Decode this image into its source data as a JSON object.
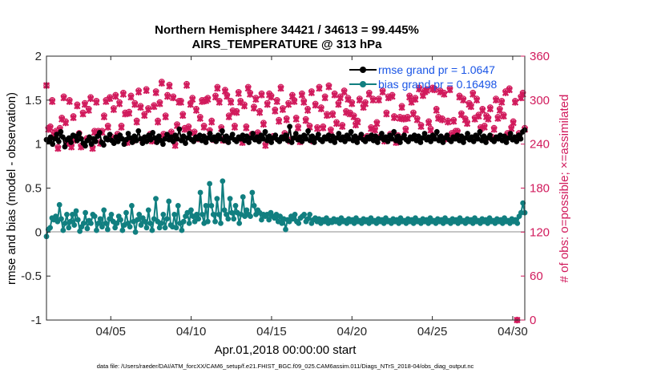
{
  "chart_data": {
    "type": "line",
    "title": "Northern Hemisphere 34421 / 34613 = 99.445%",
    "subtitle": "AIRS_TEMPERATURE @ 313 hPa",
    "xlabel": "Apr.01,2018 00:00:00 start",
    "ylabel": "rmse and bias (model - observation)",
    "y2label": "# of obs: o=possible; ×=assimilated",
    "footer": "data file: /Users/raeder/DAI/ATM_forcXX/CAM6_setup/f.e21.FHIST_BGC.f09_025.CAM6assim.011/Diags_NTrS_2018-04/obs_diag_output.nc",
    "xlim": [
      1,
      30.75
    ],
    "ylim": [
      -1,
      2
    ],
    "y2lim": [
      0,
      360
    ],
    "x_ticks": [
      5,
      10,
      15,
      20,
      25,
      30
    ],
    "x_tick_labels": [
      "04/05",
      "04/10",
      "04/15",
      "04/20",
      "04/25",
      "04/30"
    ],
    "y_ticks": [
      -1,
      -0.5,
      0,
      0.5,
      1,
      1.5,
      2
    ],
    "y_tick_labels": [
      "-1",
      "-0.5",
      "0",
      "0.5",
      "1",
      "1.5",
      "2"
    ],
    "y2_ticks": [
      0,
      60,
      120,
      180,
      240,
      300,
      360
    ],
    "y2_tick_labels": [
      "0",
      "60",
      "120",
      "180",
      "240",
      "300",
      "360"
    ],
    "legend_position": "top-right",
    "colors": {
      "rmse": "#000000",
      "bias": "#117f80",
      "obs": "#d11a5c",
      "legend_text": "#1a55e6"
    },
    "series": [
      {
        "name": "rmse",
        "legend": "rmse grand pr = 1.0647",
        "axis": "left",
        "values": [
          1.05,
          1.03,
          1.08,
          1.0,
          1.06,
          1.11,
          1.03,
          1.14,
          1.08,
          0.97,
          1.05,
          1.07,
          1.02,
          1.1,
          1.09,
          1.04,
          1.12,
          1.06,
          1.01,
          0.98,
          1.04,
          1.08,
          1.0,
          1.06,
          1.03,
          1.09,
          1.13,
          1.02,
          0.99,
          1.07,
          1.05,
          1.11,
          1.04,
          1.01,
          1.08,
          1.03,
          1.1,
          1.06,
          1.0,
          1.05,
          1.12,
          1.07,
          1.02,
          1.09,
          1.04,
          1.15,
          1.06,
          1.01,
          1.08,
          1.03,
          1.1,
          1.05,
          1.13,
          1.07,
          1.02,
          1.09,
          1.04,
          1.0,
          1.06,
          1.11,
          1.05,
          1.08,
          1.03,
          1.1,
          1.06,
          1.17,
          1.04,
          1.09,
          1.01,
          1.07,
          1.12,
          1.05,
          1.03,
          1.08,
          1.06,
          1.1,
          1.04,
          1.09,
          1.02,
          1.07,
          1.12,
          1.05,
          1.08,
          1.03,
          1.1,
          1.06,
          1.15,
          1.04,
          1.09,
          1.02,
          1.07,
          1.11,
          1.05,
          1.03,
          1.08,
          1.06,
          1.1,
          1.04,
          1.09,
          1.02,
          1.07,
          1.12,
          1.05,
          1.08,
          1.03,
          1.1,
          1.06,
          1.14,
          1.04,
          1.09,
          1.02,
          1.07,
          1.1,
          1.05,
          1.03,
          1.08,
          1.06,
          1.1,
          1.04,
          1.2,
          1.02,
          1.07,
          1.12,
          1.05,
          1.08,
          1.03,
          1.1,
          1.06,
          1.15,
          1.04,
          1.09,
          1.02,
          1.07,
          1.11,
          1.05,
          1.03,
          1.08,
          1.06,
          1.1,
          1.04,
          1.09,
          1.02,
          1.07,
          1.12,
          1.05,
          1.08,
          1.03,
          1.1,
          1.06,
          1.14,
          1.04,
          1.09,
          1.02,
          1.07,
          1.11,
          1.05,
          1.03,
          1.08,
          1.06,
          1.1,
          1.04,
          1.09,
          1.02,
          1.07,
          1.12,
          1.05,
          1.08,
          1.03,
          1.1,
          1.06,
          1.14,
          1.04,
          1.09,
          1.02,
          1.07,
          1.1,
          1.05,
          1.03,
          1.08,
          1.06,
          1.1,
          1.04,
          1.09,
          1.02,
          1.07,
          1.12,
          1.05,
          1.08,
          1.03,
          1.1,
          1.06,
          1.14,
          1.04,
          1.09,
          1.02,
          1.07,
          1.1,
          1.05,
          1.03,
          1.08,
          1.06,
          1.1,
          1.04,
          1.09,
          1.02,
          1.07,
          1.12,
          1.05,
          1.08,
          1.03,
          1.1,
          1.06,
          1.14,
          1.04,
          1.09,
          1.02,
          1.07,
          1.1,
          1.05,
          1.03,
          1.08,
          1.06,
          1.1,
          1.04,
          1.09,
          1.02,
          1.07,
          1.12,
          1.05,
          1.08,
          1.03,
          1.1,
          1.06,
          1.14,
          1.16
        ]
      },
      {
        "name": "bias",
        "legend": "bias grand pr = 0.16498",
        "axis": "left",
        "values": [
          -0.05,
          0.03,
          0.05,
          0.16,
          0.14,
          0.18,
          0.12,
          0.31,
          0.15,
          0.02,
          0.1,
          0.2,
          0.05,
          0.12,
          0.2,
          0.08,
          0.24,
          0.14,
          0.01,
          0.06,
          0.1,
          0.22,
          0.04,
          0.13,
          0.1,
          0.2,
          0.18,
          0.02,
          0.1,
          0.15,
          0.06,
          0.25,
          0.1,
          0.03,
          0.15,
          0.2,
          0.12,
          0.05,
          0.1,
          0.18,
          0.14,
          0.02,
          0.08,
          0.22,
          0.1,
          0.06,
          0.3,
          0.12,
          0.0,
          0.14,
          0.2,
          0.08,
          0.16,
          0.12,
          0.05,
          0.25,
          0.1,
          0.02,
          0.15,
          0.38,
          0.12,
          0.05,
          0.1,
          0.2,
          0.05,
          0.15,
          0.35,
          0.08,
          0.06,
          0.2,
          0.05,
          0.3,
          0.1,
          0.02,
          0.12,
          0.18,
          0.22,
          0.1,
          0.25,
          0.18,
          0.12,
          0.2,
          0.15,
          0.45,
          0.2,
          0.1,
          0.3,
          0.12,
          0.55,
          0.3,
          0.2,
          0.12,
          0.38,
          0.2,
          0.1,
          0.58,
          0.25,
          0.2,
          0.15,
          0.38,
          0.22,
          0.15,
          0.3,
          0.22,
          0.1,
          0.2,
          0.4,
          0.18,
          0.25,
          0.2,
          0.18,
          0.45,
          0.3,
          0.2,
          0.25,
          0.22,
          0.14,
          0.2,
          0.18,
          0.2,
          0.14,
          0.22,
          0.18,
          0.16,
          0.2,
          0.12,
          0.18,
          0.1,
          0.15,
          0.03,
          0.14,
          0.12,
          0.18,
          0.15,
          0.2,
          0.12,
          0.1,
          0.16,
          0.18,
          0.2,
          0.12,
          0.15,
          0.2,
          0.1,
          0.14,
          0.16,
          0.12,
          0.15,
          0.1,
          0.14,
          0.12,
          0.16,
          0.1,
          0.13,
          0.11,
          0.15,
          0.12,
          0.14,
          0.1,
          0.16,
          0.12,
          0.13,
          0.1,
          0.15,
          0.12,
          0.14,
          0.1,
          0.16,
          0.12,
          0.13,
          0.1,
          0.15,
          0.12,
          0.14,
          0.1,
          0.16,
          0.12,
          0.13,
          0.1,
          0.15,
          0.12,
          0.14,
          0.1,
          0.16,
          0.12,
          0.13,
          0.1,
          0.15,
          0.12,
          0.14,
          0.1,
          0.16,
          0.12,
          0.13,
          0.1,
          0.15,
          0.12,
          0.14,
          0.1,
          0.16,
          0.12,
          0.13,
          0.1,
          0.15,
          0.12,
          0.14,
          0.1,
          0.16,
          0.12,
          0.13,
          0.1,
          0.15,
          0.12,
          0.14,
          0.1,
          0.16,
          0.12,
          0.13,
          0.1,
          0.15,
          0.12,
          0.14,
          0.1,
          0.16,
          0.12,
          0.13,
          0.1,
          0.15,
          0.12,
          0.14,
          0.1,
          0.16,
          0.12,
          0.13,
          0.1,
          0.15,
          0.12,
          0.14,
          0.1,
          0.16,
          0.12,
          0.13,
          0.1,
          0.15,
          0.12,
          0.14,
          0.1,
          0.16,
          0.12,
          0.13,
          0.1,
          0.15,
          0.12,
          0.14,
          0.1,
          0.18,
          0.22,
          0.33,
          0.22
        ]
      },
      {
        "name": "obs_possible",
        "axis": "right",
        "marker": "o",
        "values": [
          320,
          262,
          264,
          300,
          255,
          258,
          236,
          262,
          276,
          305,
          271,
          243,
          300,
          238,
          278,
          247,
          294,
          255,
          238,
          283,
          296,
          248,
          288,
          304,
          236,
          258,
          299,
          258,
          243,
          258,
          279,
          300,
          265,
          304,
          250,
          289,
          307,
          254,
          297,
          265,
          310,
          283,
          244,
          284,
          306,
          247,
          296,
          272,
          313,
          292,
          247,
          281,
          315,
          289,
          254,
          246,
          293,
          312,
          272,
          297,
          325,
          254,
          279,
          307,
          321,
          257,
          305,
          240,
          267,
          299,
          299,
          281,
          262,
          322,
          264,
          296,
          303,
          257,
          288,
          249,
          277,
          300,
          265,
          301,
          303,
          259,
          272,
          248,
          306,
          318,
          299,
          263,
          247,
          314,
          307,
          279,
          299,
          286,
          265,
          285,
          311,
          299,
          244,
          294,
          264,
          318,
          310,
          254,
          291,
          303,
          256,
          285,
          309,
          269,
          240,
          296,
          309,
          306,
          251,
          287,
          300,
          273,
          318,
          289,
          255,
          275,
          296,
          246,
          307,
          300,
          276,
          264,
          245,
          309,
          299,
          274,
          288,
          265,
          312,
          246,
          295,
          263,
          318,
          290,
          264,
          305,
          281,
          320,
          260,
          282,
          309,
          270,
          296,
          305,
          266,
          313,
          285,
          303,
          283,
          297,
          279,
          268,
          272,
          302,
          251,
          292,
          297,
          251,
          310,
          263,
          302,
          261,
          270,
          302,
          251,
          313,
          246,
          283,
          305,
          254,
          307,
          278,
          244,
          252,
          277,
          292,
          276,
          261,
          277,
          306,
          299,
          283,
          303,
          275,
          317,
          266,
          308,
          313,
          315,
          271,
          261,
          317,
          316,
          288,
          277,
          313,
          275,
          310,
          249,
          272,
          316,
          255,
          273,
          258,
          258,
          306,
          282,
          302,
          275,
          270,
          296,
          293,
          310,
          276,
          302,
          280,
          263,
          288,
          265,
          279,
          276,
          290,
          250,
          262,
          302,
          277,
          288,
          299,
          280,
          312,
          255,
          316,
          263,
          271,
          299,
          0,
          255,
          305,
          310,
          262
        ]
      },
      {
        "name": "obs_assimilated",
        "axis": "right",
        "marker": "x",
        "values": [
          320,
          260,
          262,
          298,
          253,
          256,
          234,
          260,
          274,
          303,
          269,
          241,
          298,
          236,
          276,
          245,
          292,
          253,
          236,
          281,
          294,
          246,
          286,
          302,
          234,
          256,
          297,
          256,
          241,
          256,
          277,
          298,
          263,
          302,
          248,
          287,
          305,
          252,
          295,
          263,
          308,
          281,
          242,
          282,
          304,
          245,
          294,
          270,
          311,
          290,
          245,
          279,
          313,
          287,
          252,
          244,
          291,
          310,
          270,
          295,
          323,
          252,
          277,
          305,
          319,
          255,
          303,
          238,
          265,
          297,
          297,
          279,
          260,
          320,
          262,
          294,
          301,
          255,
          286,
          247,
          275,
          298,
          263,
          299,
          301,
          257,
          270,
          246,
          304,
          316,
          297,
          261,
          245,
          312,
          305,
          277,
          297,
          284,
          263,
          283,
          309,
          297,
          242,
          292,
          262,
          316,
          308,
          252,
          289,
          301,
          254,
          283,
          307,
          267,
          238,
          294,
          307,
          304,
          249,
          285,
          298,
          271,
          316,
          287,
          253,
          273,
          294,
          244,
          305,
          298,
          274,
          262,
          243,
          307,
          297,
          272,
          286,
          263,
          310,
          244,
          293,
          261,
          316,
          288,
          262,
          303,
          279,
          318,
          258,
          280,
          307,
          268,
          294,
          303,
          264,
          311,
          283,
          301,
          281,
          295,
          277,
          266,
          270,
          300,
          249,
          290,
          295,
          249,
          308,
          261,
          300,
          259,
          268,
          300,
          249,
          311,
          244,
          281,
          303,
          252,
          305,
          276,
          242,
          250,
          275,
          290,
          274,
          259,
          275,
          304,
          297,
          281,
          301,
          273,
          315,
          264,
          306,
          311,
          313,
          269,
          259,
          315,
          314,
          286,
          275,
          311,
          273,
          308,
          247,
          270,
          314,
          253,
          271,
          256,
          256,
          304,
          280,
          300,
          273,
          268,
          294,
          291,
          308,
          274,
          300,
          278,
          261,
          286,
          263,
          277,
          274,
          288,
          248,
          260,
          300,
          275,
          286,
          297,
          278,
          310,
          253,
          314,
          261,
          269,
          297,
          0,
          253,
          303,
          308,
          260
        ]
      }
    ]
  }
}
